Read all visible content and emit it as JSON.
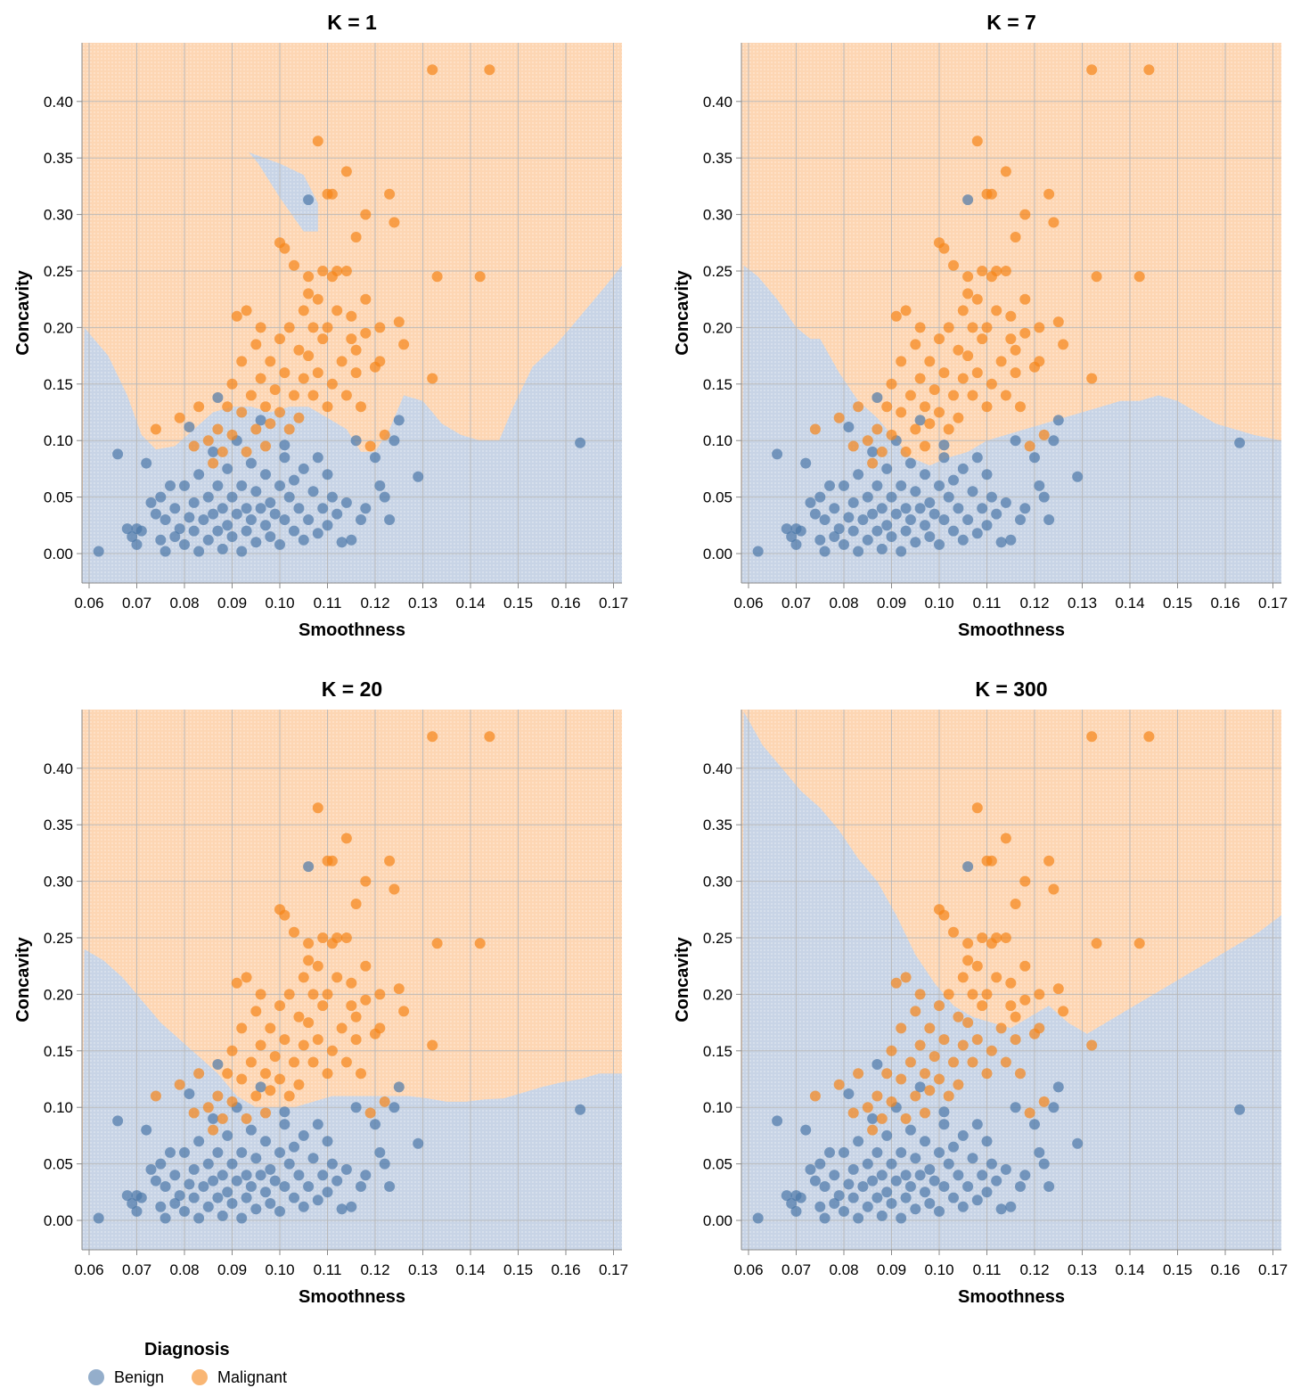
{
  "legend": {
    "title": "Diagnosis",
    "items": [
      {
        "label": "Benign",
        "color": "#4c78a8"
      },
      {
        "label": "Malignant",
        "color": "#f58518"
      }
    ]
  },
  "region_colors": {
    "Benign": "#c8d4e6",
    "Malignant": "#fdd6b3"
  },
  "chart_data": [
    {
      "type": "scatter",
      "title": "K = 1",
      "xlabel": "Smoothness",
      "ylabel": "Concavity",
      "xlim": [
        0.06,
        0.17
      ],
      "ylim": [
        0.0,
        0.4
      ],
      "xticks": [
        "0.06",
        "0.07",
        "0.08",
        "0.09",
        "0.10",
        "0.11",
        "0.12",
        "0.13",
        "0.14",
        "0.15",
        "0.16",
        "0.17"
      ],
      "yticks": [
        "0.00",
        "0.05",
        "0.10",
        "0.15",
        "0.20",
        "0.25",
        "0.30",
        "0.35",
        "0.40"
      ],
      "grid": true,
      "boundary": [
        [
          0.059,
          0.2
        ],
        [
          0.064,
          0.175
        ],
        [
          0.068,
          0.14
        ],
        [
          0.071,
          0.105
        ],
        [
          0.074,
          0.092
        ],
        [
          0.078,
          0.095
        ],
        [
          0.082,
          0.11
        ],
        [
          0.086,
          0.125
        ],
        [
          0.09,
          0.13
        ],
        [
          0.094,
          0.13
        ],
        [
          0.098,
          0.125
        ],
        [
          0.102,
          0.13
        ],
        [
          0.106,
          0.13
        ],
        [
          0.11,
          0.12
        ],
        [
          0.114,
          0.11
        ],
        [
          0.117,
          0.09
        ],
        [
          0.12,
          0.09
        ],
        [
          0.123,
          0.11
        ],
        [
          0.126,
          0.14
        ],
        [
          0.13,
          0.135
        ],
        [
          0.134,
          0.115
        ],
        [
          0.138,
          0.105
        ],
        [
          0.142,
          0.1
        ],
        [
          0.146,
          0.1
        ],
        [
          0.149,
          0.13
        ],
        [
          0.153,
          0.165
        ],
        [
          0.158,
          0.185
        ],
        [
          0.163,
          0.21
        ],
        [
          0.168,
          0.235
        ],
        [
          0.172,
          0.255
        ]
      ],
      "pocket": [
        [
          0.0935,
          0.355
        ],
        [
          0.1,
          0.345
        ],
        [
          0.105,
          0.335
        ],
        [
          0.108,
          0.31
        ],
        [
          0.108,
          0.285
        ],
        [
          0.105,
          0.285
        ],
        [
          0.1,
          0.315
        ],
        [
          0.0955,
          0.345
        ]
      ]
    },
    {
      "type": "scatter",
      "title": "K = 7",
      "xlabel": "Smoothness",
      "ylabel": "Concavity",
      "xlim": [
        0.06,
        0.17
      ],
      "ylim": [
        0.0,
        0.4
      ],
      "xticks": [
        "0.06",
        "0.07",
        "0.08",
        "0.09",
        "0.10",
        "0.11",
        "0.12",
        "0.13",
        "0.14",
        "0.15",
        "0.16",
        "0.17"
      ],
      "yticks": [
        "0.00",
        "0.05",
        "0.10",
        "0.15",
        "0.20",
        "0.25",
        "0.30",
        "0.35",
        "0.40"
      ],
      "grid": true,
      "boundary": [
        [
          0.059,
          0.255
        ],
        [
          0.062,
          0.245
        ],
        [
          0.066,
          0.225
        ],
        [
          0.07,
          0.2
        ],
        [
          0.073,
          0.19
        ],
        [
          0.075,
          0.19
        ],
        [
          0.079,
          0.16
        ],
        [
          0.083,
          0.135
        ],
        [
          0.087,
          0.12
        ],
        [
          0.091,
          0.1
        ],
        [
          0.094,
          0.085
        ],
        [
          0.098,
          0.078
        ],
        [
          0.102,
          0.085
        ],
        [
          0.106,
          0.09
        ],
        [
          0.11,
          0.1
        ],
        [
          0.114,
          0.105
        ],
        [
          0.118,
          0.11
        ],
        [
          0.122,
          0.115
        ],
        [
          0.126,
          0.12
        ],
        [
          0.13,
          0.125
        ],
        [
          0.134,
          0.13
        ],
        [
          0.138,
          0.135
        ],
        [
          0.142,
          0.135
        ],
        [
          0.146,
          0.14
        ],
        [
          0.15,
          0.135
        ],
        [
          0.154,
          0.125
        ],
        [
          0.158,
          0.115
        ],
        [
          0.162,
          0.11
        ],
        [
          0.166,
          0.105
        ],
        [
          0.172,
          0.1
        ]
      ]
    },
    {
      "type": "scatter",
      "title": "K = 20",
      "xlabel": "Smoothness",
      "ylabel": "Concavity",
      "xlim": [
        0.06,
        0.17
      ],
      "ylim": [
        0.0,
        0.4
      ],
      "xticks": [
        "0.06",
        "0.07",
        "0.08",
        "0.09",
        "0.10",
        "0.11",
        "0.12",
        "0.13",
        "0.14",
        "0.15",
        "0.16",
        "0.17"
      ],
      "yticks": [
        "0.00",
        "0.05",
        "0.10",
        "0.15",
        "0.20",
        "0.25",
        "0.30",
        "0.35",
        "0.40"
      ],
      "grid": true,
      "boundary": [
        [
          0.059,
          0.24
        ],
        [
          0.063,
          0.23
        ],
        [
          0.067,
          0.215
        ],
        [
          0.071,
          0.195
        ],
        [
          0.075,
          0.175
        ],
        [
          0.079,
          0.16
        ],
        [
          0.083,
          0.145
        ],
        [
          0.087,
          0.13
        ],
        [
          0.091,
          0.11
        ],
        [
          0.095,
          0.1
        ],
        [
          0.099,
          0.1
        ],
        [
          0.103,
          0.1
        ],
        [
          0.107,
          0.105
        ],
        [
          0.111,
          0.11
        ],
        [
          0.115,
          0.11
        ],
        [
          0.119,
          0.11
        ],
        [
          0.123,
          0.11
        ],
        [
          0.127,
          0.11
        ],
        [
          0.131,
          0.108
        ],
        [
          0.135,
          0.105
        ],
        [
          0.139,
          0.105
        ],
        [
          0.143,
          0.107
        ],
        [
          0.147,
          0.108
        ],
        [
          0.151,
          0.113
        ],
        [
          0.155,
          0.118
        ],
        [
          0.159,
          0.122
        ],
        [
          0.163,
          0.125
        ],
        [
          0.167,
          0.13
        ],
        [
          0.172,
          0.13
        ]
      ]
    },
    {
      "type": "scatter",
      "title": "K = 300",
      "xlabel": "Smoothness",
      "ylabel": "Concavity",
      "xlim": [
        0.06,
        0.17
      ],
      "ylim": [
        0.0,
        0.4
      ],
      "xticks": [
        "0.06",
        "0.07",
        "0.08",
        "0.09",
        "0.10",
        "0.11",
        "0.12",
        "0.13",
        "0.14",
        "0.15",
        "0.16",
        "0.17"
      ],
      "yticks": [
        "0.00",
        "0.05",
        "0.10",
        "0.15",
        "0.20",
        "0.25",
        "0.30",
        "0.35",
        "0.40"
      ],
      "grid": true,
      "boundary": [
        [
          0.059,
          0.45
        ],
        [
          0.063,
          0.42
        ],
        [
          0.067,
          0.4
        ],
        [
          0.071,
          0.38
        ],
        [
          0.075,
          0.365
        ],
        [
          0.079,
          0.345
        ],
        [
          0.083,
          0.32
        ],
        [
          0.087,
          0.3
        ],
        [
          0.091,
          0.27
        ],
        [
          0.095,
          0.235
        ],
        [
          0.099,
          0.21
        ],
        [
          0.103,
          0.19
        ],
        [
          0.107,
          0.18
        ],
        [
          0.111,
          0.175
        ],
        [
          0.115,
          0.17
        ],
        [
          0.119,
          0.18
        ],
        [
          0.123,
          0.19
        ],
        [
          0.127,
          0.175
        ],
        [
          0.131,
          0.165
        ],
        [
          0.135,
          0.175
        ],
        [
          0.139,
          0.185
        ],
        [
          0.143,
          0.195
        ],
        [
          0.147,
          0.205
        ],
        [
          0.151,
          0.215
        ],
        [
          0.155,
          0.225
        ],
        [
          0.159,
          0.235
        ],
        [
          0.163,
          0.245
        ],
        [
          0.167,
          0.255
        ],
        [
          0.172,
          0.27
        ]
      ]
    }
  ],
  "points": {
    "benign": [
      [
        0.062,
        0.002
      ],
      [
        0.066,
        0.088
      ],
      [
        0.068,
        0.022
      ],
      [
        0.069,
        0.015
      ],
      [
        0.07,
        0.008
      ],
      [
        0.07,
        0.022
      ],
      [
        0.071,
        0.02
      ],
      [
        0.072,
        0.08
      ],
      [
        0.073,
        0.045
      ],
      [
        0.074,
        0.035
      ],
      [
        0.075,
        0.012
      ],
      [
        0.075,
        0.05
      ],
      [
        0.076,
        0.002
      ],
      [
        0.076,
        0.03
      ],
      [
        0.077,
        0.06
      ],
      [
        0.078,
        0.015
      ],
      [
        0.078,
        0.04
      ],
      [
        0.079,
        0.022
      ],
      [
        0.08,
        0.008
      ],
      [
        0.08,
        0.06
      ],
      [
        0.081,
        0.032
      ],
      [
        0.081,
        0.112
      ],
      [
        0.082,
        0.02
      ],
      [
        0.082,
        0.045
      ],
      [
        0.083,
        0.002
      ],
      [
        0.083,
        0.07
      ],
      [
        0.084,
        0.03
      ],
      [
        0.085,
        0.012
      ],
      [
        0.085,
        0.05
      ],
      [
        0.086,
        0.035
      ],
      [
        0.086,
        0.09
      ],
      [
        0.087,
        0.02
      ],
      [
        0.087,
        0.06
      ],
      [
        0.088,
        0.004
      ],
      [
        0.088,
        0.04
      ],
      [
        0.089,
        0.025
      ],
      [
        0.089,
        0.075
      ],
      [
        0.09,
        0.015
      ],
      [
        0.09,
        0.05
      ],
      [
        0.091,
        0.035
      ],
      [
        0.091,
        0.1
      ],
      [
        0.092,
        0.002
      ],
      [
        0.092,
        0.06
      ],
      [
        0.093,
        0.02
      ],
      [
        0.093,
        0.04
      ],
      [
        0.094,
        0.03
      ],
      [
        0.094,
        0.08
      ],
      [
        0.095,
        0.01
      ],
      [
        0.095,
        0.055
      ],
      [
        0.096,
        0.04
      ],
      [
        0.097,
        0.025
      ],
      [
        0.097,
        0.07
      ],
      [
        0.098,
        0.015
      ],
      [
        0.098,
        0.045
      ],
      [
        0.099,
        0.035
      ],
      [
        0.1,
        0.008
      ],
      [
        0.1,
        0.06
      ],
      [
        0.101,
        0.03
      ],
      [
        0.101,
        0.085
      ],
      [
        0.102,
        0.05
      ],
      [
        0.103,
        0.02
      ],
      [
        0.103,
        0.065
      ],
      [
        0.104,
        0.04
      ],
      [
        0.105,
        0.012
      ],
      [
        0.105,
        0.075
      ],
      [
        0.106,
        0.03
      ],
      [
        0.107,
        0.055
      ],
      [
        0.108,
        0.018
      ],
      [
        0.108,
        0.085
      ],
      [
        0.109,
        0.04
      ],
      [
        0.11,
        0.025
      ],
      [
        0.11,
        0.07
      ],
      [
        0.111,
        0.05
      ],
      [
        0.112,
        0.035
      ],
      [
        0.113,
        0.01
      ],
      [
        0.114,
        0.045
      ],
      [
        0.115,
        0.012
      ],
      [
        0.116,
        0.1
      ],
      [
        0.117,
        0.03
      ],
      [
        0.118,
        0.04
      ],
      [
        0.12,
        0.085
      ],
      [
        0.121,
        0.06
      ],
      [
        0.122,
        0.05
      ],
      [
        0.123,
        0.03
      ],
      [
        0.124,
        0.1
      ],
      [
        0.125,
        0.118
      ],
      [
        0.129,
        0.068
      ],
      [
        0.163,
        0.098
      ],
      [
        0.106,
        0.313
      ],
      [
        0.087,
        0.138
      ],
      [
        0.101,
        0.096
      ],
      [
        0.096,
        0.118
      ]
    ],
    "malignant": [
      [
        0.074,
        0.11
      ],
      [
        0.079,
        0.12
      ],
      [
        0.082,
        0.095
      ],
      [
        0.083,
        0.13
      ],
      [
        0.085,
        0.1
      ],
      [
        0.086,
        0.08
      ],
      [
        0.087,
        0.11
      ],
      [
        0.088,
        0.09
      ],
      [
        0.089,
        0.13
      ],
      [
        0.09,
        0.105
      ],
      [
        0.09,
        0.15
      ],
      [
        0.091,
        0.21
      ],
      [
        0.092,
        0.125
      ],
      [
        0.092,
        0.17
      ],
      [
        0.093,
        0.09
      ],
      [
        0.093,
        0.215
      ],
      [
        0.094,
        0.14
      ],
      [
        0.095,
        0.11
      ],
      [
        0.095,
        0.185
      ],
      [
        0.096,
        0.155
      ],
      [
        0.096,
        0.2
      ],
      [
        0.097,
        0.095
      ],
      [
        0.097,
        0.13
      ],
      [
        0.098,
        0.17
      ],
      [
        0.098,
        0.115
      ],
      [
        0.099,
        0.145
      ],
      [
        0.1,
        0.275
      ],
      [
        0.1,
        0.19
      ],
      [
        0.1,
        0.125
      ],
      [
        0.101,
        0.27
      ],
      [
        0.101,
        0.16
      ],
      [
        0.102,
        0.11
      ],
      [
        0.102,
        0.2
      ],
      [
        0.103,
        0.14
      ],
      [
        0.103,
        0.255
      ],
      [
        0.104,
        0.18
      ],
      [
        0.104,
        0.12
      ],
      [
        0.105,
        0.215
      ],
      [
        0.105,
        0.155
      ],
      [
        0.106,
        0.245
      ],
      [
        0.106,
        0.175
      ],
      [
        0.106,
        0.23
      ],
      [
        0.107,
        0.14
      ],
      [
        0.107,
        0.2
      ],
      [
        0.108,
        0.365
      ],
      [
        0.108,
        0.225
      ],
      [
        0.108,
        0.16
      ],
      [
        0.109,
        0.25
      ],
      [
        0.109,
        0.19
      ],
      [
        0.11,
        0.318
      ],
      [
        0.11,
        0.13
      ],
      [
        0.11,
        0.2
      ],
      [
        0.111,
        0.318
      ],
      [
        0.111,
        0.245
      ],
      [
        0.111,
        0.15
      ],
      [
        0.112,
        0.25
      ],
      [
        0.112,
        0.215
      ],
      [
        0.113,
        0.17
      ],
      [
        0.114,
        0.338
      ],
      [
        0.114,
        0.25
      ],
      [
        0.114,
        0.14
      ],
      [
        0.115,
        0.21
      ],
      [
        0.115,
        0.19
      ],
      [
        0.116,
        0.28
      ],
      [
        0.116,
        0.16
      ],
      [
        0.116,
        0.18
      ],
      [
        0.117,
        0.13
      ],
      [
        0.118,
        0.3
      ],
      [
        0.118,
        0.225
      ],
      [
        0.118,
        0.195
      ],
      [
        0.119,
        0.095
      ],
      [
        0.12,
        0.165
      ],
      [
        0.121,
        0.2
      ],
      [
        0.121,
        0.17
      ],
      [
        0.122,
        0.105
      ],
      [
        0.123,
        0.318
      ],
      [
        0.124,
        0.293
      ],
      [
        0.125,
        0.205
      ],
      [
        0.126,
        0.185
      ],
      [
        0.132,
        0.428
      ],
      [
        0.132,
        0.155
      ],
      [
        0.133,
        0.245
      ],
      [
        0.142,
        0.245
      ],
      [
        0.144,
        0.428
      ]
    ]
  }
}
